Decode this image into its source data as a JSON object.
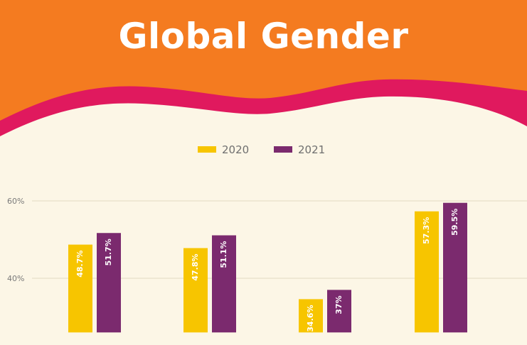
{
  "header": {
    "title": "Global Gender",
    "colors": {
      "band": "#f47b20",
      "wave": "#e0195e",
      "background": "#fcf6e6"
    }
  },
  "chart_data": {
    "type": "bar",
    "title": "Global Gender",
    "xlabel": "",
    "ylabel": "",
    "categories": [
      "",
      "",
      "",
      ""
    ],
    "series": [
      {
        "name": "2020",
        "color": "#f7c500",
        "values": [
          48.7,
          47.8,
          34.6,
          57.3
        ],
        "labels": [
          "48.7%",
          "47.8%",
          "34.6%",
          "57.3%"
        ]
      },
      {
        "name": "2021",
        "color": "#7b2a6e",
        "values": [
          51.7,
          51.1,
          37,
          59.5
        ],
        "labels": [
          "51.7%",
          "51.1%",
          "37%",
          "59.5%"
        ]
      }
    ],
    "yticks": [
      40,
      60
    ],
    "ytick_labels": [
      "40%",
      "60%"
    ],
    "ylim": [
      26,
      61
    ],
    "grid": true,
    "legend": "top-center"
  }
}
